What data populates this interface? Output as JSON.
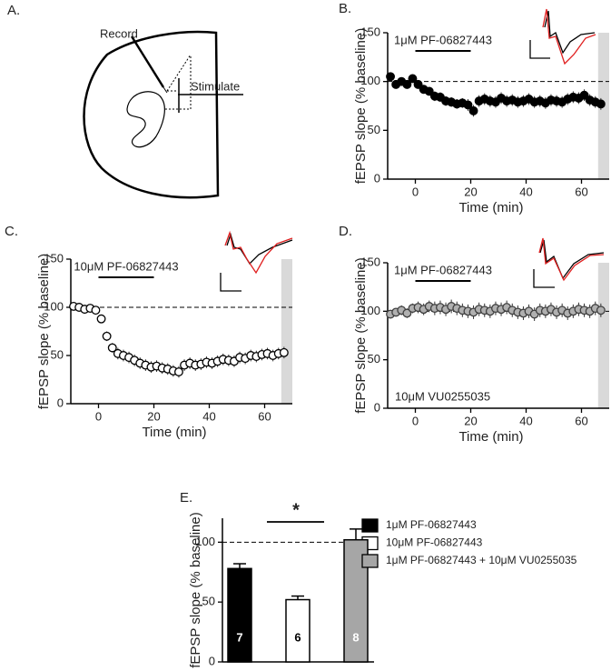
{
  "diagram": {
    "label": "A.",
    "record": "Record",
    "stimulate": "Stimulate"
  },
  "chart_data": [
    {
      "type": "timecourse",
      "panel_label": "B.",
      "xlabel": "Time (min)",
      "ylabel": "fEPSP slope  (% baseline)",
      "xlim": [
        -10,
        70
      ],
      "ylim": [
        0,
        150
      ],
      "xticks": [
        0,
        20,
        40,
        60
      ],
      "yticks": [
        0,
        50,
        100,
        150
      ],
      "reference_line": 100,
      "shade": [
        66,
        70
      ],
      "treatment": {
        "label": "1μM PF-06827443",
        "start": 0,
        "end": 20
      },
      "marker_fill": "#000000",
      "marker_stroke": "#000000",
      "x": [
        -9,
        -7,
        -5,
        -3,
        -1,
        1,
        3,
        5,
        7,
        9,
        11,
        13,
        15,
        17,
        19,
        21,
        23,
        25,
        27,
        29,
        31,
        33,
        35,
        37,
        39,
        41,
        43,
        45,
        47,
        49,
        51,
        53,
        55,
        57,
        59,
        61,
        63,
        65,
        67
      ],
      "values": [
        105,
        97,
        100,
        97,
        103,
        97,
        92,
        90,
        85,
        84,
        80,
        79,
        77,
        78,
        76,
        70,
        80,
        82,
        80,
        79,
        83,
        80,
        81,
        79,
        80,
        82,
        79,
        80,
        78,
        81,
        80,
        79,
        82,
        84,
        83,
        86,
        81,
        79,
        77
      ],
      "errors": [
        3,
        3,
        3,
        3,
        3,
        4,
        4,
        4,
        5,
        5,
        5,
        5,
        5,
        5,
        6,
        6,
        6,
        6,
        6,
        6,
        6,
        6,
        6,
        6,
        6,
        6,
        6,
        6,
        6,
        6,
        6,
        6,
        6,
        6,
        6,
        6,
        6,
        6,
        6
      ]
    },
    {
      "type": "timecourse",
      "panel_label": "C.",
      "xlabel": "Time (min)",
      "ylabel": "fEPSP slope  (% baseline)",
      "xlim": [
        -10,
        70
      ],
      "ylim": [
        0,
        150
      ],
      "xticks": [
        0,
        20,
        40,
        60
      ],
      "yticks": [
        0,
        50,
        100,
        150
      ],
      "reference_line": 100,
      "shade": [
        66,
        70
      ],
      "treatment": {
        "label": "10μM PF-06827443",
        "start": 0,
        "end": 20
      },
      "marker_fill": "#ffffff",
      "marker_stroke": "#000000",
      "x": [
        -9,
        -7,
        -5,
        -3,
        -1,
        1,
        3,
        5,
        7,
        9,
        11,
        13,
        15,
        17,
        19,
        21,
        23,
        25,
        27,
        29,
        31,
        33,
        35,
        37,
        39,
        41,
        43,
        45,
        47,
        49,
        51,
        53,
        55,
        57,
        59,
        61,
        63,
        65,
        67
      ],
      "values": [
        101,
        100,
        98,
        99,
        97,
        88,
        70,
        58,
        52,
        50,
        48,
        45,
        42,
        40,
        38,
        39,
        37,
        36,
        34,
        33,
        40,
        42,
        40,
        41,
        43,
        42,
        44,
        46,
        45,
        44,
        48,
        47,
        50,
        49,
        51,
        52,
        50,
        52,
        53
      ],
      "errors": [
        3,
        3,
        3,
        3,
        3,
        4,
        5,
        5,
        6,
        6,
        6,
        6,
        6,
        6,
        6,
        6,
        6,
        6,
        6,
        6,
        6,
        6,
        6,
        6,
        6,
        6,
        6,
        6,
        6,
        6,
        6,
        6,
        6,
        6,
        6,
        6,
        6,
        6,
        6
      ]
    },
    {
      "type": "timecourse",
      "panel_label": "D.",
      "xlabel": "Time (min)",
      "ylabel": "fEPSP slope  (% baseline)",
      "xlim": [
        -10,
        70
      ],
      "ylim": [
        0,
        150
      ],
      "xticks": [
        0,
        20,
        40,
        60
      ],
      "yticks": [
        0,
        50,
        100,
        150
      ],
      "reference_line": 100,
      "shade": [
        66,
        70
      ],
      "treatment": {
        "label": "1μM PF-06827443",
        "start": 0,
        "end": 20
      },
      "annotation": "10μM VU0255035",
      "marker_fill": "#b0b0b0",
      "marker_stroke": "#404040",
      "x": [
        -9,
        -7,
        -5,
        -3,
        -1,
        1,
        3,
        5,
        7,
        9,
        11,
        13,
        15,
        17,
        19,
        21,
        23,
        25,
        27,
        29,
        31,
        33,
        35,
        37,
        39,
        41,
        43,
        45,
        47,
        49,
        51,
        53,
        55,
        57,
        59,
        61,
        63,
        65,
        67
      ],
      "values": [
        97,
        99,
        101,
        98,
        103,
        104,
        102,
        105,
        103,
        104,
        102,
        105,
        103,
        101,
        100,
        99,
        102,
        101,
        100,
        103,
        102,
        104,
        101,
        99,
        98,
        100,
        97,
        101,
        100,
        102,
        99,
        101,
        98,
        100,
        102,
        101,
        100,
        103,
        101
      ],
      "errors": [
        4,
        4,
        5,
        5,
        5,
        6,
        6,
        6,
        7,
        7,
        7,
        7,
        7,
        7,
        7,
        7,
        7,
        7,
        7,
        7,
        7,
        7,
        7,
        7,
        7,
        7,
        7,
        7,
        7,
        7,
        7,
        7,
        7,
        7,
        7,
        7,
        7,
        7,
        7
      ]
    },
    {
      "type": "bar",
      "panel_label": "E.",
      "ylabel": "fEPSP slope  (% baseline)",
      "ylim": [
        0,
        120
      ],
      "yticks": [
        0,
        50,
        100
      ],
      "reference_line": 100,
      "significance": "*",
      "series": [
        {
          "name": "1μM PF-06827443",
          "color": "#000000",
          "values": [
            78
          ],
          "errors": [
            4
          ],
          "n": 7,
          "n_color": "#ffffff"
        },
        {
          "name": "10μM PF-06827443",
          "color": "#ffffff",
          "values": [
            52
          ],
          "errors": [
            3
          ],
          "n": 6,
          "n_color": "#000000"
        },
        {
          "name": "1μM PF-06827443 + 10μM VU0255035",
          "color": "#a6a6a6",
          "values": [
            102
          ],
          "errors": [
            9
          ],
          "n": 8,
          "n_color": "#ffffff"
        }
      ]
    }
  ]
}
